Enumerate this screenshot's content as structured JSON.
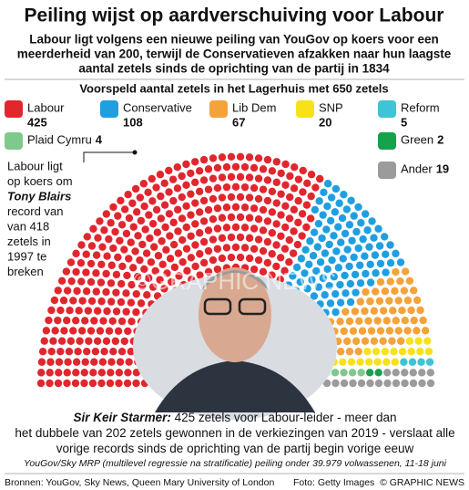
{
  "chart_data": {
    "type": "parliament",
    "title": "Peiling wijst op aardverschuiving voor Labour",
    "subtitle": [
      "Labour ligt volgens een nieuwe peiling van YouGov op koers voor een",
      "meerderheid van 200, terwijl de Conservatieven afzakken naar hun laagste",
      "aantal zetels sinds de oprichting van de partij in 1834"
    ],
    "chart_subtitle": "Voorspeld aantal zetels in het Lagerhuis met 650 zetels",
    "categories": [
      "Labour",
      "Conservative",
      "Lib Dem",
      "SNP",
      "Reform",
      "Plaid Cymru",
      "Green",
      "Ander"
    ],
    "values": [
      425,
      108,
      67,
      20,
      5,
      4,
      2,
      19
    ],
    "colors": [
      "#e1262e",
      "#1f9fe0",
      "#f4a33a",
      "#f7e11b",
      "#3ec4d6",
      "#80c98c",
      "#16a14b",
      "#9b9b9b"
    ],
    "annotation": [
      "Labour ligt",
      "op koers om",
      "Tony Blairs",
      "record van",
      "van 418",
      "zetels in",
      "1997 te",
      "breken"
    ],
    "watermark": "©GRAPHIC NEWS",
    "caption": [
      [
        "Sir Keir Starmer:",
        " 425 zetels voor Labour-leider - meer dan"
      ],
      [
        "het dubbele van 202 zetels gewonnen in de verkiezingen van 2019 - verslaat alle"
      ],
      [
        "vorige records sinds de oprichting van de partij begin vorige eeuw"
      ]
    ],
    "note": "YouGov/Sky MRP (multilevel regressie na stratificatie) peiling onder 39.979 volwassenen, 11-18 juni",
    "source": "Bronnen: YouGov, Sky News, Queen Mary University of London",
    "photo_credit": "Foto: Getty Images",
    "credit": "© GRAPHIC NEWS"
  }
}
